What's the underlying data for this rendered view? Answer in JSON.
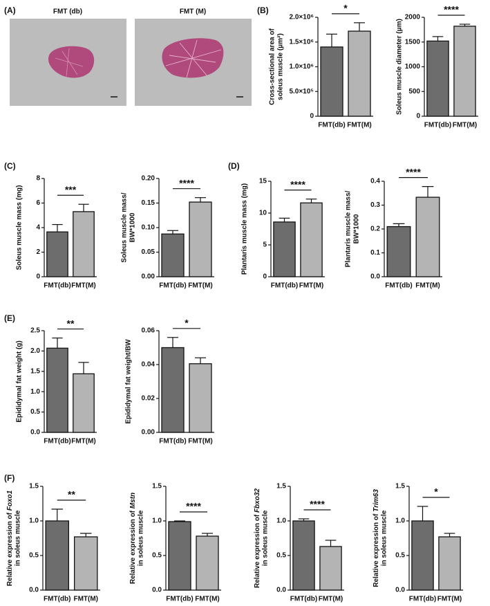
{
  "panel_labels": [
    "(A)",
    "(B)",
    "(C)",
    "(D)",
    "(E)",
    "(F)"
  ],
  "images": [
    {
      "title": "FMT (db)"
    },
    {
      "title": "FMT (M)"
    }
  ],
  "chart_data": [
    {
      "type": "bar",
      "ylabel": [
        "Cross-sectional area of",
        "soleus muscle (μm²)"
      ],
      "categories": [
        "FMT(db)",
        "FMT(M)"
      ],
      "values": [
        1400000,
        1720000
      ],
      "errors": [
        260000,
        170000
      ],
      "colors": [
        "#6d6d6d",
        "#b4b4b4"
      ],
      "ylim": [
        0,
        2000000
      ],
      "yticks": [
        0,
        {
          "value": 500000,
          "label": "5.0×10⁵"
        },
        {
          "value": 1000000,
          "label": "1.0×10⁶"
        },
        {
          "value": 1500000,
          "label": "1.5×10⁶"
        },
        {
          "value": 2000000,
          "label": "2.0×10⁶"
        }
      ],
      "significance": "*"
    },
    {
      "type": "bar",
      "ylabel": [
        "Soleus muscle diameter (μm)"
      ],
      "categories": [
        "FMT(db)",
        "FMT(M)"
      ],
      "values": [
        1520,
        1820
      ],
      "errors": [
        90,
        40
      ],
      "colors": [
        "#6d6d6d",
        "#b4b4b4"
      ],
      "ylim": [
        0,
        2000
      ],
      "yticks": [
        0,
        500,
        1000,
        1500,
        2000
      ],
      "significance": "****"
    },
    {
      "type": "bar",
      "ylabel": [
        "Soleus muscle mass (mg)"
      ],
      "categories": [
        "FMT(db)",
        "FMT(M)"
      ],
      "values": [
        3.65,
        5.3
      ],
      "errors": [
        0.6,
        0.6
      ],
      "colors": [
        "#6d6d6d",
        "#b4b4b4"
      ],
      "ylim": [
        0,
        8
      ],
      "yticks": [
        0,
        2,
        4,
        6,
        8
      ],
      "significance": "***"
    },
    {
      "type": "bar",
      "ylabel": [
        "Soleus muscle mass/",
        "BW*1000"
      ],
      "categories": [
        "FMT(db)",
        "FMT(M)"
      ],
      "values": [
        0.087,
        0.152
      ],
      "errors": [
        0.007,
        0.009
      ],
      "colors": [
        "#6d6d6d",
        "#b4b4b4"
      ],
      "ylim": [
        0,
        0.2
      ],
      "yticks": [
        {
          "value": 0,
          "label": "0.00"
        },
        {
          "value": 0.05,
          "label": "0.05"
        },
        {
          "value": 0.1,
          "label": "0.10"
        },
        {
          "value": 0.15,
          "label": "0.15"
        },
        {
          "value": 0.2,
          "label": "0.20"
        }
      ],
      "significance": "****"
    },
    {
      "type": "bar",
      "ylabel": [
        "Plantaris muscle mass (mg)"
      ],
      "categories": [
        "FMT(db)",
        "FMT(M)"
      ],
      "values": [
        8.6,
        11.6
      ],
      "errors": [
        0.6,
        0.6
      ],
      "colors": [
        "#6d6d6d",
        "#b4b4b4"
      ],
      "ylim": [
        0,
        15
      ],
      "yticks": [
        0,
        5,
        10,
        15
      ],
      "significance": "****"
    },
    {
      "type": "bar",
      "ylabel": [
        "Plantaris muscle mass/",
        "BW*1000"
      ],
      "categories": [
        "FMT(db)",
        "FMT(M)"
      ],
      "values": [
        0.21,
        0.333
      ],
      "errors": [
        0.012,
        0.045
      ],
      "colors": [
        "#6d6d6d",
        "#b4b4b4"
      ],
      "ylim": [
        0,
        0.4
      ],
      "yticks": [
        {
          "value": 0,
          "label": "0.0"
        },
        0.1,
        0.2,
        0.3,
        0.4
      ],
      "significance": "****"
    },
    {
      "type": "bar",
      "ylabel": [
        "Epididymal fat weight (g)"
      ],
      "categories": [
        "FMT(db)",
        "FMT(M)"
      ],
      "values": [
        2.07,
        1.44
      ],
      "errors": [
        0.25,
        0.28
      ],
      "colors": [
        "#6d6d6d",
        "#b4b4b4"
      ],
      "ylim": [
        0,
        2.5
      ],
      "yticks": [
        {
          "value": 0,
          "label": "0.0"
        },
        0.5,
        {
          "value": 1,
          "label": "1.0"
        },
        1.5,
        {
          "value": 2,
          "label": "2.0"
        },
        2.5
      ],
      "significance": "**"
    },
    {
      "type": "bar",
      "ylabel": [
        "Epididymal fat weight/BW"
      ],
      "categories": [
        "FMT(db)",
        "FMT(M)"
      ],
      "values": [
        0.05,
        0.0405
      ],
      "errors": [
        0.006,
        0.0035
      ],
      "colors": [
        "#6d6d6d",
        "#b4b4b4"
      ],
      "ylim": [
        0,
        0.06
      ],
      "yticks": [
        {
          "value": 0,
          "label": "0.00"
        },
        0.02,
        0.04,
        0.06
      ],
      "significance": "*"
    },
    {
      "type": "bar",
      "ylabel": [
        "Relative expression of ",
        "in soleus muscle"
      ],
      "gene": "Foxo1",
      "categories": [
        "FMT(db)",
        "FMT(M)"
      ],
      "values": [
        1.0,
        0.77
      ],
      "errors": [
        0.17,
        0.05
      ],
      "colors": [
        "#6d6d6d",
        "#b4b4b4"
      ],
      "ylim": [
        0,
        1.5
      ],
      "yticks": [
        {
          "value": 0,
          "label": "0.0"
        },
        0.5,
        {
          "value": 1,
          "label": "1.0"
        },
        1.5
      ],
      "significance": "**"
    },
    {
      "type": "bar",
      "ylabel": [
        "Relative expression of ",
        "in soleus muscle"
      ],
      "gene": "Mstn",
      "categories": [
        "FMT(db)",
        "FMT(M)"
      ],
      "values": [
        0.99,
        0.78
      ],
      "errors": [
        0.01,
        0.04
      ],
      "colors": [
        "#6d6d6d",
        "#b4b4b4"
      ],
      "ylim": [
        0,
        1.5
      ],
      "yticks": [
        {
          "value": 0,
          "label": "0.0"
        },
        0.5,
        {
          "value": 1,
          "label": "1.0"
        },
        1.5
      ],
      "significance": "****"
    },
    {
      "type": "bar",
      "ylabel": [
        "Relative expression of ",
        "in soleus muscle"
      ],
      "gene": "Fbxo32",
      "categories": [
        "FMT(db)",
        "FMT(M)"
      ],
      "values": [
        1.0,
        0.63
      ],
      "errors": [
        0.03,
        0.09
      ],
      "colors": [
        "#6d6d6d",
        "#b4b4b4"
      ],
      "ylim": [
        0,
        1.5
      ],
      "yticks": [
        {
          "value": 0,
          "label": "0.0"
        },
        0.5,
        {
          "value": 1,
          "label": "1.0"
        },
        1.5
      ],
      "significance": "****"
    },
    {
      "type": "bar",
      "ylabel": [
        "Relative expression of ",
        "in soleus muscle"
      ],
      "gene": "Trim63",
      "categories": [
        "FMT(db)",
        "FMT(M)"
      ],
      "values": [
        1.0,
        0.77
      ],
      "errors": [
        0.21,
        0.05
      ],
      "colors": [
        "#6d6d6d",
        "#b4b4b4"
      ],
      "ylim": [
        0,
        1.5
      ],
      "yticks": [
        {
          "value": 0,
          "label": "0.0"
        },
        0.5,
        {
          "value": 1,
          "label": "1.0"
        },
        1.5
      ],
      "significance": "*"
    }
  ]
}
